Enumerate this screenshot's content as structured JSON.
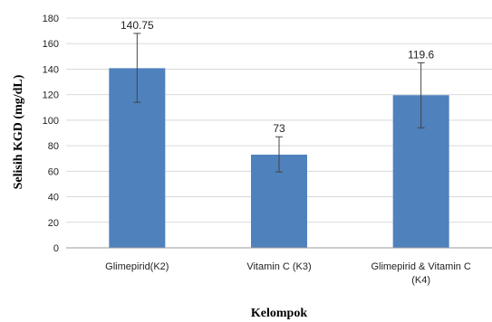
{
  "chart_data": {
    "type": "bar",
    "categories": [
      "Glimepirid(K2)",
      "Vitamin C (K3)",
      "Glimepirid & Vitamin C (K4)"
    ],
    "category_lines": [
      [
        "Glimepirid(K2)"
      ],
      [
        "Vitamin C (K3)"
      ],
      [
        "Glimepirid & Vitamin C",
        "(K4)"
      ]
    ],
    "values": [
      140.75,
      73,
      119.6
    ],
    "data_labels": [
      "140.75",
      "73",
      "119.6"
    ],
    "error_low": [
      114,
      59.5,
      94
    ],
    "error_high": [
      168,
      87,
      145
    ],
    "title": "",
    "xlabel": "Kelompok",
    "ylabel": "Selisih KGD (mg/dL)",
    "ylim": [
      0,
      180
    ],
    "yticks": [
      0,
      20,
      40,
      60,
      80,
      100,
      120,
      140,
      160,
      180
    ],
    "grid": true,
    "bar_color": "#4f81bd",
    "grid_color": "#d9d9d9"
  }
}
